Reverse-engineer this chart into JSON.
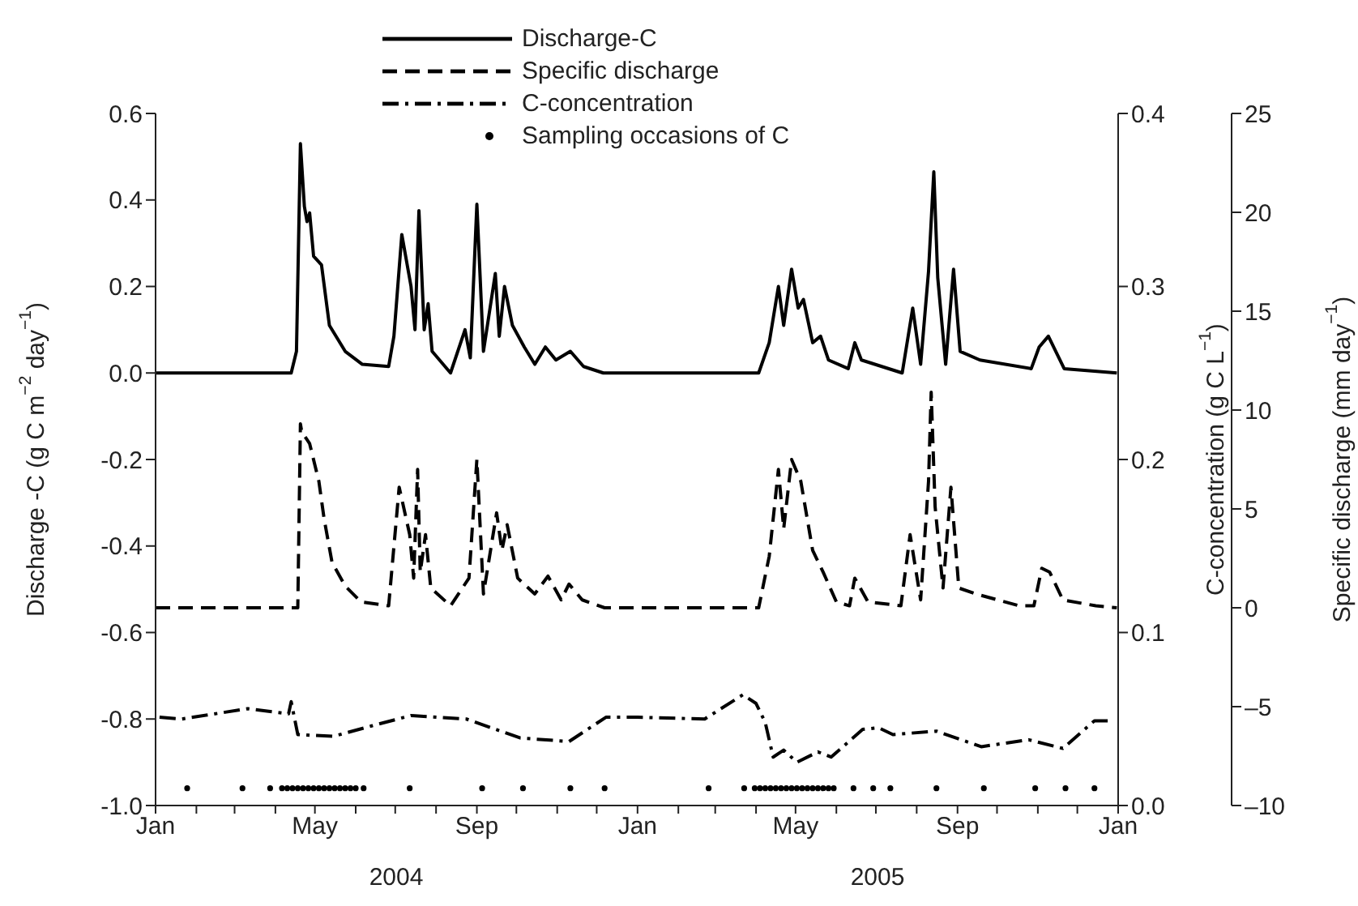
{
  "chart_data": {
    "type": "line",
    "ylabel": "Discharge -C (g C m$^{−2}$ day$^{−1}$)",
    "y2label": "C-concentration (g C L$^{−1}$)",
    "y3label": "Specific discharge (mm day$^{−1}$)",
    "xlim": [
      "2004-01-01",
      "2006-01-01"
    ],
    "xticks": [
      {
        "value": "2004-01-01",
        "label": "Jan"
      },
      {
        "value": "2004-02-01",
        "label": null
      },
      {
        "value": "2004-03-01",
        "label": null
      },
      {
        "value": "2004-04-01",
        "label": null
      },
      {
        "value": "2004-05-01",
        "label": "May"
      },
      {
        "value": "2004-06-01",
        "label": null
      },
      {
        "value": "2004-07-01",
        "label": null
      },
      {
        "value": "2004-08-01",
        "label": null
      },
      {
        "value": "2004-09-01",
        "label": "Sep"
      },
      {
        "value": "2004-10-01",
        "label": null
      },
      {
        "value": "2004-11-01",
        "label": null
      },
      {
        "value": "2004-12-01",
        "label": null
      },
      {
        "value": "2005-01-01",
        "label": "Jan"
      },
      {
        "value": "2005-02-01",
        "label": null
      },
      {
        "value": "2005-03-01",
        "label": null
      },
      {
        "value": "2005-04-01",
        "label": null
      },
      {
        "value": "2005-05-01",
        "label": "May"
      },
      {
        "value": "2005-06-01",
        "label": null
      },
      {
        "value": "2005-07-01",
        "label": null
      },
      {
        "value": "2005-08-01",
        "label": null
      },
      {
        "value": "2005-09-01",
        "label": "Sep"
      },
      {
        "value": "2005-10-01",
        "label": null
      },
      {
        "value": "2005-11-01",
        "label": null
      },
      {
        "value": "2005-12-01",
        "label": null
      },
      {
        "value": "2006-01-01",
        "label": "Jan"
      }
    ],
    "ylim": [
      -1,
      0.6
    ],
    "yticks": [
      {
        "value": -1,
        "label": "-1.0"
      },
      -0.8,
      -0.6,
      -0.4,
      -0.2,
      {
        "value": 0,
        "label": "0.0"
      },
      0.2,
      0.4,
      0.6
    ],
    "y2lim": [
      0,
      0.4
    ],
    "y2ticks": [
      {
        "value": 0,
        "label": "0.0"
      },
      0.1,
      0.2,
      0.3,
      0.4
    ],
    "y3lim": [
      -10,
      25
    ],
    "y3ticks": [
      {
        "value": -10,
        "label": "–10"
      },
      {
        "value": -5,
        "label": "–5"
      },
      0,
      5,
      10,
      15,
      20,
      25
    ],
    "legend": "top",
    "annotations": [
      "2004",
      "2005"
    ],
    "series": [
      {
        "name": "Discharge-C",
        "line_style": "solid",
        "color": "#000000",
        "x": [
          "2004-01-01",
          "2004-04-13",
          "2004-04-17",
          "2004-04-20",
          "2004-04-23",
          "2004-04-25",
          "2004-04-27",
          "2004-04-30",
          "2004-05-06",
          "2004-05-12",
          "2004-05-24",
          "2004-06-06",
          "2004-06-26",
          "2004-06-30",
          "2004-07-06",
          "2004-07-13",
          "2004-07-16",
          "2004-07-19",
          "2004-07-23",
          "2004-07-26",
          "2004-07-29",
          "2004-08-12",
          "2004-08-23",
          "2004-08-27",
          "2004-09-01",
          "2004-09-06",
          "2004-09-15",
          "2004-09-18",
          "2004-09-22",
          "2004-09-28",
          "2004-10-07",
          "2004-10-15",
          "2004-10-23",
          "2004-10-31",
          "2004-11-11",
          "2004-11-21",
          "2004-12-06",
          "2005-03-24",
          "2005-04-03",
          "2005-04-11",
          "2005-04-18",
          "2005-04-22",
          "2005-04-28",
          "2005-05-03",
          "2005-05-07",
          "2005-05-14",
          "2005-05-20",
          "2005-05-26",
          "2005-06-10",
          "2005-06-15",
          "2005-06-20",
          "2005-07-21",
          "2005-07-29",
          "2005-08-04",
          "2005-08-10",
          "2005-08-14",
          "2005-08-17",
          "2005-08-23",
          "2005-08-29",
          "2005-09-03",
          "2005-09-18",
          "2005-10-27",
          "2005-11-02",
          "2005-11-09",
          "2005-11-21",
          "2005-12-31"
        ],
        "values": [
          0,
          0,
          0.05,
          0.53,
          0.385,
          0.35,
          0.37,
          0.27,
          0.25,
          0.11,
          0.05,
          0.02,
          0.015,
          0.085,
          0.32,
          0.2,
          0.1,
          0.375,
          0.1,
          0.16,
          0.05,
          0,
          0.1,
          0.035,
          0.39,
          0.05,
          0.23,
          0.085,
          0.2,
          0.11,
          0.06,
          0.02,
          0.06,
          0.03,
          0.05,
          0.015,
          0,
          0,
          0,
          0.07,
          0.2,
          0.11,
          0.24,
          0.15,
          0.17,
          0.07,
          0.085,
          0.03,
          0.01,
          0.07,
          0.03,
          0,
          0.15,
          0.02,
          0.235,
          0.465,
          0.22,
          0.02,
          0.24,
          0.05,
          0.03,
          0.01,
          0.06,
          0.085,
          0.01,
          0
        ]
      },
      {
        "name": "Specific discharge",
        "line_style": "dashed",
        "axis": "y3",
        "color": "#000000",
        "x": [
          "2004-01-01",
          "2004-04-18",
          "2004-04-20",
          "2004-04-21",
          "2004-04-27",
          "2004-05-04",
          "2004-05-08",
          "2004-05-14",
          "2004-05-24",
          "2004-06-05",
          "2004-06-26",
          "2004-07-04",
          "2004-07-12",
          "2004-07-15",
          "2004-07-18",
          "2004-07-20",
          "2004-07-24",
          "2004-07-28",
          "2004-08-12",
          "2004-08-26",
          "2004-09-01",
          "2004-09-06",
          "2004-09-16",
          "2004-09-20",
          "2004-09-24",
          "2004-10-02",
          "2004-10-15",
          "2004-10-25",
          "2004-11-04",
          "2004-11-10",
          "2004-11-20",
          "2004-12-07",
          "2005-04-03",
          "2005-04-11",
          "2005-04-18",
          "2005-04-22",
          "2005-04-28",
          "2005-05-05",
          "2005-05-14",
          "2005-05-22",
          "2005-06-01",
          "2005-06-11",
          "2005-06-15",
          "2005-06-25",
          "2005-07-20",
          "2005-07-27",
          "2005-08-04",
          "2005-08-10",
          "2005-08-12",
          "2005-08-15",
          "2005-08-21",
          "2005-08-27",
          "2005-09-02",
          "2005-09-15",
          "2005-10-18",
          "2005-10-29",
          "2005-11-04",
          "2005-11-10",
          "2005-11-20",
          "2005-12-15",
          "2005-12-31"
        ],
        "values": [
          0,
          0,
          9.3,
          8.9,
          8.3,
          6.4,
          4.5,
          2.3,
          1.1,
          0.3,
          0.1,
          6.1,
          3.7,
          1.5,
          7,
          1.8,
          3.7,
          1,
          0.1,
          1.5,
          7.5,
          0.7,
          4.8,
          2.9,
          4.2,
          1.5,
          0.7,
          1.6,
          0.4,
          1.2,
          0.4,
          0,
          0,
          2.6,
          7,
          4,
          7.5,
          6.4,
          2.9,
          1.8,
          0.3,
          0.1,
          1.5,
          0.3,
          0.1,
          3.7,
          0.4,
          6.4,
          10.9,
          5.1,
          1,
          6.1,
          1,
          0.7,
          0.1,
          0.1,
          2,
          1.8,
          0.4,
          0.1,
          0
        ]
      },
      {
        "name": "C-concentration",
        "line_style": "dashdot",
        "axis": "y2",
        "color": "#000000",
        "x": [
          "2004-01-04",
          "2004-01-21",
          "2004-03-11",
          "2004-04-11",
          "2004-04-13",
          "2004-04-18",
          "2004-05-15",
          "2004-06-13",
          "2004-07-13",
          "2004-08-24",
          "2004-10-04",
          "2004-11-10",
          "2004-12-08",
          "2005-01-01",
          "2005-02-21",
          "2005-03-22",
          "2005-04-01",
          "2005-04-08",
          "2005-04-14",
          "2005-04-22",
          "2005-05-02",
          "2005-05-18",
          "2005-05-28",
          "2005-06-21",
          "2005-07-03",
          "2005-07-14",
          "2005-08-16",
          "2005-09-19",
          "2005-10-25",
          "2005-11-20",
          "2005-12-14",
          "2005-12-26"
        ],
        "values": [
          0.051,
          0.05,
          0.056,
          0.053,
          0.06,
          0.041,
          0.04,
          0.046,
          0.052,
          0.05,
          0.039,
          0.037,
          0.051,
          0.051,
          0.05,
          0.064,
          0.059,
          0.048,
          0.028,
          0.032,
          0.025,
          0.031,
          0.028,
          0.044,
          0.045,
          0.041,
          0.043,
          0.034,
          0.038,
          0.033,
          0.049,
          0.049
        ]
      },
      {
        "name": "Sampling occasions of C",
        "type": "scatter",
        "marker": "circle",
        "color": "#000000",
        "x": [
          "2004-01-25",
          "2004-03-07",
          "2004-03-28",
          "2004-04-06",
          "2004-04-10",
          "2004-04-14",
          "2004-04-18",
          "2004-04-22",
          "2004-04-26",
          "2004-04-30",
          "2004-05-04",
          "2004-05-08",
          "2004-05-12",
          "2004-05-16",
          "2004-05-20",
          "2004-05-24",
          "2004-05-28",
          "2004-06-01",
          "2004-06-07",
          "2004-07-12",
          "2004-09-05",
          "2004-10-06",
          "2004-11-11",
          "2004-12-07",
          "2005-02-24",
          "2005-03-23",
          "2005-03-31",
          "2005-04-04",
          "2005-04-08",
          "2005-04-12",
          "2005-04-16",
          "2005-04-20",
          "2005-04-24",
          "2005-04-28",
          "2005-05-02",
          "2005-05-06",
          "2005-05-10",
          "2005-05-14",
          "2005-05-18",
          "2005-05-22",
          "2005-05-26",
          "2005-05-30",
          "2005-06-14",
          "2005-06-29",
          "2005-07-12",
          "2005-08-16",
          "2005-09-21",
          "2005-10-30",
          "2005-11-22",
          "2005-12-14"
        ],
        "values": [
          -0.96,
          -0.96,
          -0.96,
          -0.96,
          -0.96,
          -0.96,
          -0.96,
          -0.96,
          -0.96,
          -0.96,
          -0.96,
          -0.96,
          -0.96,
          -0.96,
          -0.96,
          -0.96,
          -0.96,
          -0.96,
          -0.96,
          -0.96,
          -0.96,
          -0.96,
          -0.96,
          -0.96,
          -0.96,
          -0.96,
          -0.96,
          -0.96,
          -0.96,
          -0.96,
          -0.96,
          -0.96,
          -0.96,
          -0.96,
          -0.96,
          -0.96,
          -0.96,
          -0.96,
          -0.96,
          -0.96,
          -0.96,
          -0.96,
          -0.96,
          -0.96,
          -0.96,
          -0.96,
          -0.96,
          -0.96,
          -0.96,
          -0.96
        ]
      }
    ]
  }
}
